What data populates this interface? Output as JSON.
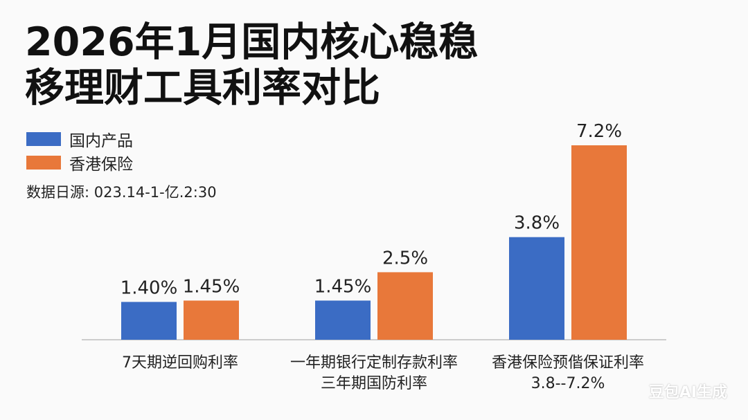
{
  "chart_data": {
    "type": "bar",
    "title": "2026年1月国内核心稳稳移理财工具利率对比",
    "categories": [
      [
        "7天期逆回购利率"
      ],
      [
        "一年期银行定制存款利率",
        "三年期国防利率"
      ],
      [
        "香港保险预偕保证利率",
        "3.8--7.2%"
      ]
    ],
    "series": [
      {
        "name": "国内产品",
        "color": "#3b6cc4",
        "values": [
          1.4,
          1.45,
          3.8
        ],
        "labels": [
          "1.40%",
          "1.45%",
          "3.8%"
        ]
      },
      {
        "name": "香港保险",
        "color": "#e8783a",
        "values": [
          1.45,
          2.5,
          7.2
        ],
        "labels": [
          "1.45%",
          "2.5%",
          "7.2%"
        ]
      }
    ],
    "ylim": [
      0,
      8
    ],
    "grid": false,
    "legend_position": "top-left"
  },
  "source_text": "数据日源: 023.14-1-亿.2:30",
  "watermark": "豆包AI生成"
}
